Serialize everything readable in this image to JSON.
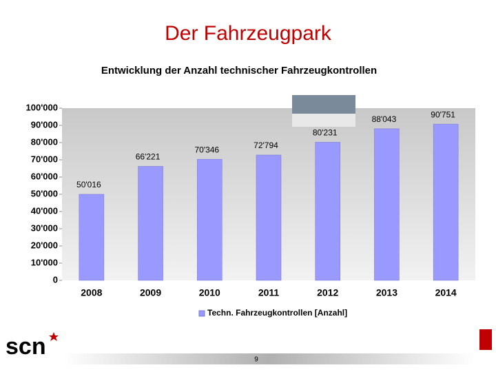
{
  "page_title": "Der Fahrzeugpark",
  "logo": "scn",
  "page_number": "9",
  "chart_data": {
    "type": "bar",
    "title": "Entwicklung der Anzahl technischer Fahrzeugkontrollen",
    "categories": [
      "2008",
      "2009",
      "2010",
      "2011",
      "2012",
      "2013",
      "2014"
    ],
    "series": [
      {
        "name": "Techn. Fahrzeugkontrollen [Anzahl]",
        "color": "#9999ff",
        "values": [
          50016,
          66221,
          70346,
          72794,
          80231,
          88043,
          90751
        ],
        "value_labels": [
          "50'016",
          "66'221",
          "70'346",
          "72'794",
          "80'231",
          "88'043",
          "90'751"
        ]
      }
    ],
    "ylim": [
      0,
      100000
    ],
    "yticks": [
      0,
      {
        "value": 10000,
        "label": "10'000"
      },
      {
        "value": 20000,
        "label": "20'000"
      },
      {
        "value": 30000,
        "label": "30'000"
      },
      {
        "value": 40000,
        "label": "40'000"
      },
      {
        "value": 50000,
        "label": "50'000"
      },
      {
        "value": 60000,
        "label": "60'000"
      },
      {
        "value": 70000,
        "label": "70'000"
      },
      {
        "value": 80000,
        "label": "80'000"
      },
      {
        "value": 90000,
        "label": "90'000"
      },
      {
        "value": 100000,
        "label": "100'000"
      }
    ],
    "grid": false,
    "legend": "bottom"
  }
}
